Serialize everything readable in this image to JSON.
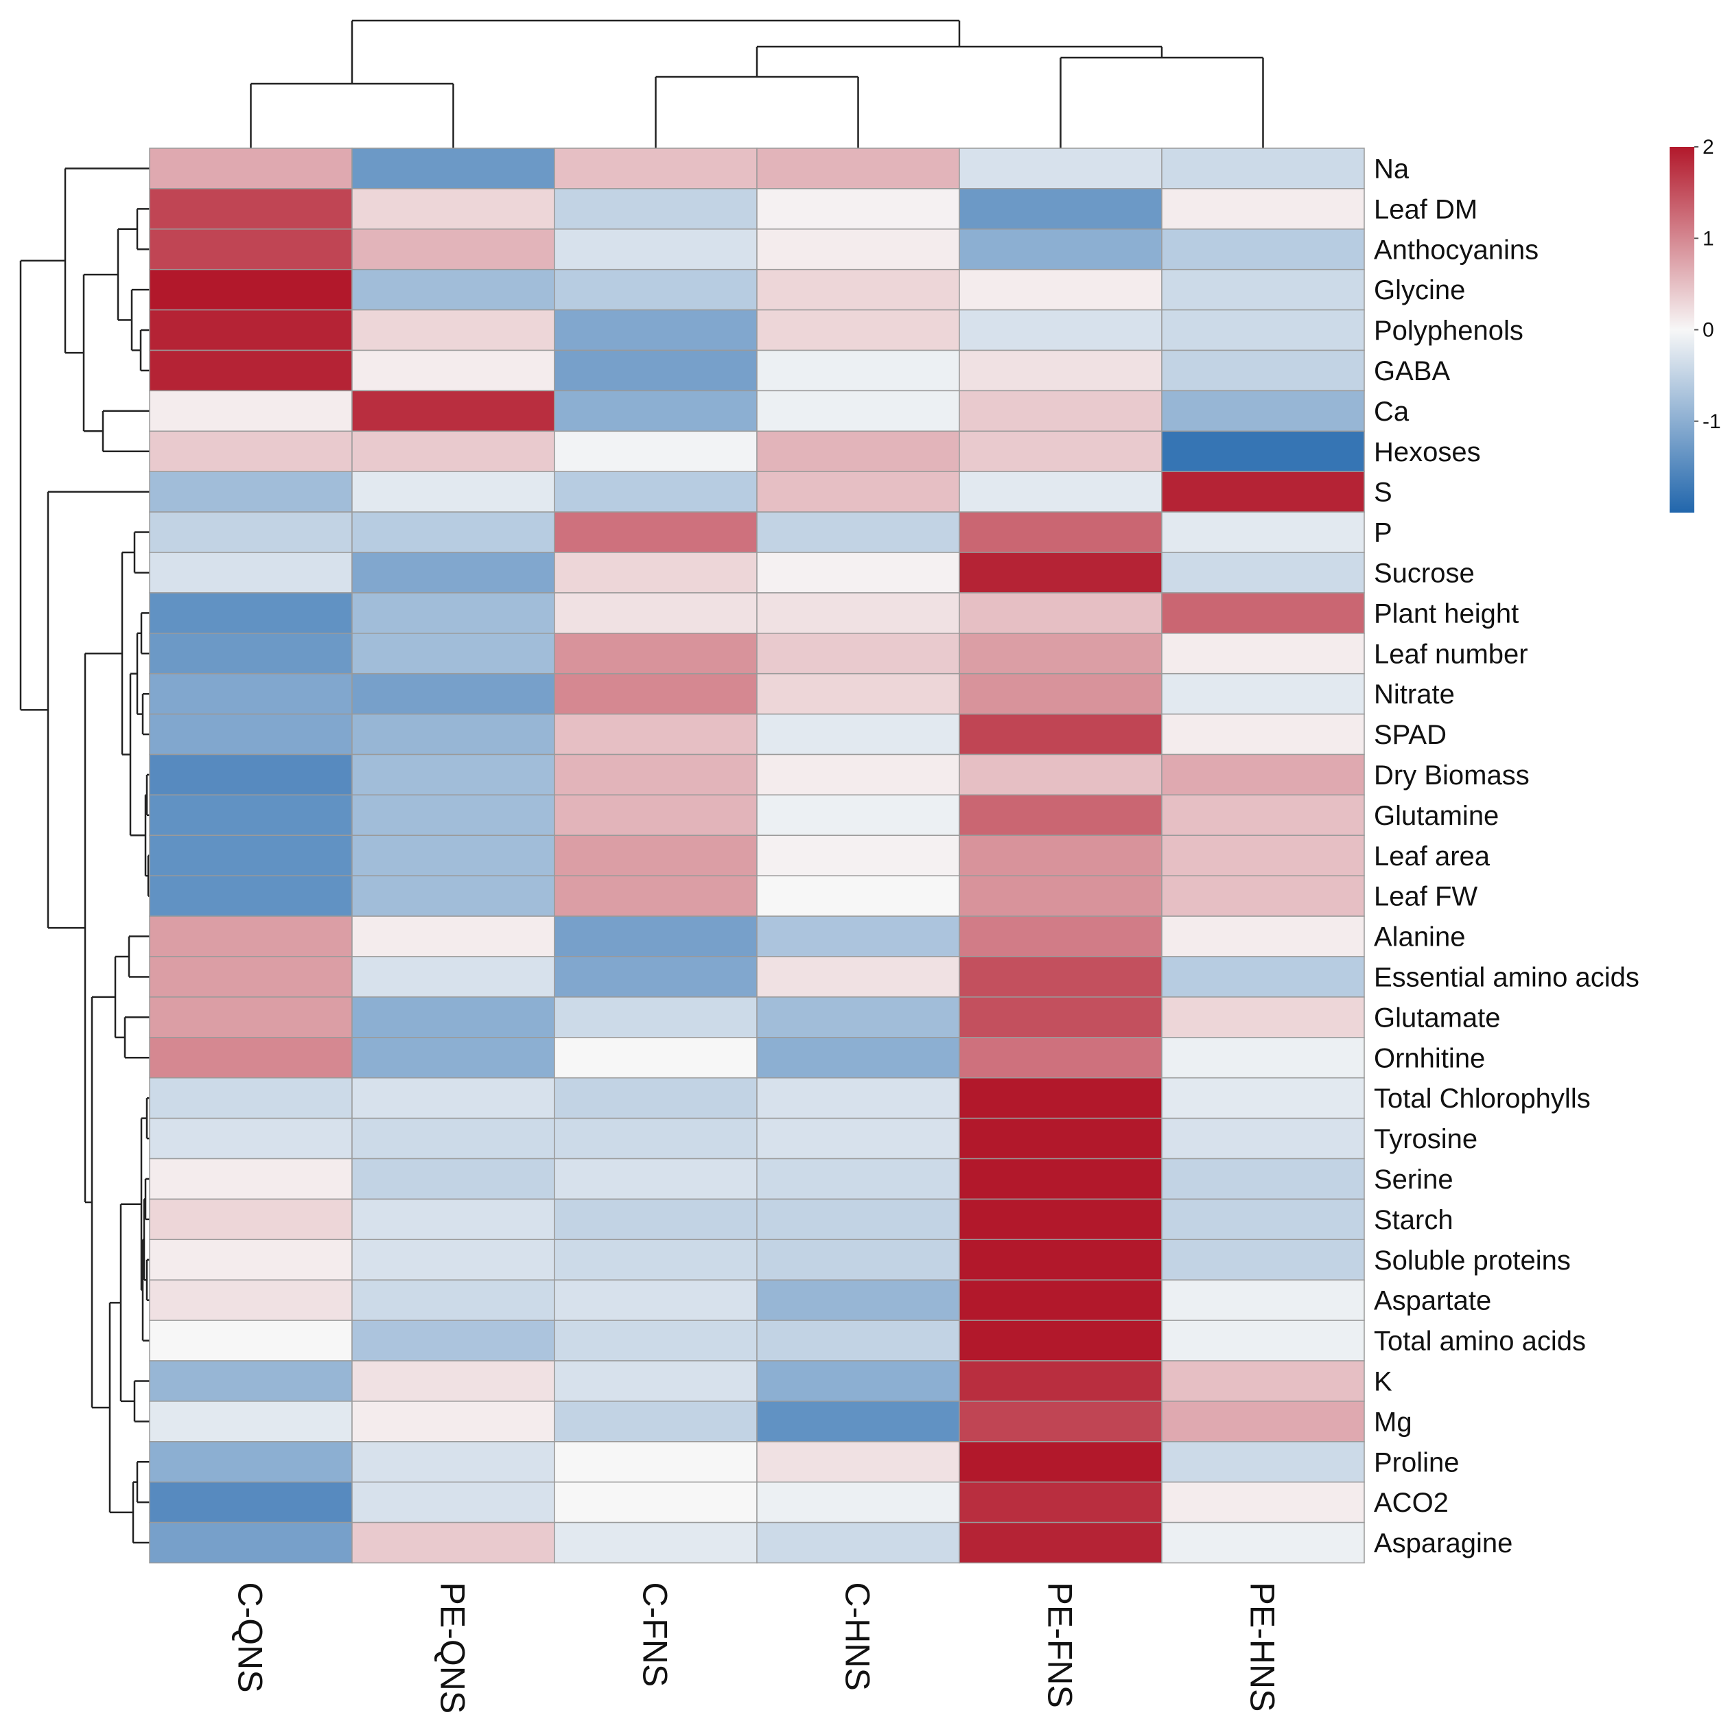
{
  "chart_data": {
    "type": "heatmap",
    "title": "",
    "columns": [
      "C-QNS",
      "PE-QNS",
      "C-FNS",
      "C-HNS",
      "PE-FNS",
      "PE-HNS"
    ],
    "rows": [
      "Na",
      "Leaf DM",
      "Anthocyanins",
      "Glycine",
      "Polyphenols",
      "GABA",
      "Ca",
      "Hexoses",
      "S",
      "P",
      "Sucrose",
      "Plant height",
      "Leaf number",
      "Nitrate",
      "SPAD",
      "Dry Biomass",
      "Glutamine",
      "Leaf area",
      "Leaf FW",
      "Alanine",
      "Essential amino acids",
      "Glutamate",
      "Ornhitine",
      "Total Chlorophylls",
      "Tyrosine",
      "Serine",
      "Starch",
      "Soluble proteins",
      "Aspartate",
      "Total amino acids",
      "K",
      "Mg",
      "Proline",
      "ACO2",
      "Asparagine"
    ],
    "values": [
      [
        0.7,
        -1.3,
        0.5,
        0.6,
        -0.3,
        -0.4
      ],
      [
        1.6,
        0.3,
        -0.5,
        0.05,
        -1.3,
        0.1
      ],
      [
        1.6,
        0.6,
        -0.3,
        0.1,
        -1.0,
        -0.6
      ],
      [
        2.0,
        -0.8,
        -0.6,
        0.3,
        0.1,
        -0.4
      ],
      [
        1.9,
        0.3,
        -1.1,
        0.3,
        -0.3,
        -0.4
      ],
      [
        1.9,
        0.1,
        -1.2,
        -0.1,
        0.2,
        -0.5
      ],
      [
        0.1,
        1.8,
        -1.0,
        -0.1,
        0.4,
        -0.9
      ],
      [
        0.4,
        0.4,
        -0.05,
        0.6,
        0.4,
        -1.8
      ],
      [
        -0.8,
        -0.2,
        -0.6,
        0.5,
        -0.2,
        1.9
      ],
      [
        -0.5,
        -0.6,
        1.2,
        -0.5,
        1.3,
        -0.2
      ],
      [
        -0.3,
        -1.1,
        0.3,
        0.05,
        1.9,
        -0.4
      ],
      [
        -1.4,
        -0.8,
        0.2,
        0.2,
        0.5,
        1.3
      ],
      [
        -1.3,
        -0.8,
        0.9,
        0.4,
        0.8,
        0.1
      ],
      [
        -1.1,
        -1.2,
        1.0,
        0.3,
        0.9,
        -0.2
      ],
      [
        -1.1,
        -0.9,
        0.5,
        -0.2,
        1.6,
        0.1
      ],
      [
        -1.5,
        -0.8,
        0.6,
        0.1,
        0.5,
        0.7
      ],
      [
        -1.4,
        -0.8,
        0.6,
        -0.1,
        1.3,
        0.5
      ],
      [
        -1.4,
        -0.8,
        0.8,
        0.05,
        0.9,
        0.5
      ],
      [
        -1.4,
        -0.8,
        0.8,
        0.0,
        0.9,
        0.5
      ],
      [
        0.8,
        0.1,
        -1.2,
        -0.7,
        1.1,
        0.1
      ],
      [
        0.8,
        -0.3,
        -1.1,
        0.2,
        1.5,
        -0.6
      ],
      [
        0.8,
        -1.0,
        -0.4,
        -0.8,
        1.5,
        0.3
      ],
      [
        1.0,
        -1.0,
        0.0,
        -1.0,
        1.2,
        -0.1
      ],
      [
        -0.4,
        -0.3,
        -0.5,
        -0.3,
        2.3,
        -0.2
      ],
      [
        -0.3,
        -0.4,
        -0.4,
        -0.3,
        2.3,
        -0.3
      ],
      [
        0.1,
        -0.5,
        -0.3,
        -0.4,
        2.2,
        -0.5
      ],
      [
        0.3,
        -0.3,
        -0.5,
        -0.5,
        2.2,
        -0.5
      ],
      [
        0.1,
        -0.3,
        -0.4,
        -0.5,
        2.2,
        -0.5
      ],
      [
        0.2,
        -0.4,
        -0.3,
        -0.9,
        2.2,
        -0.1
      ],
      [
        0.0,
        -0.7,
        -0.4,
        -0.5,
        2.2,
        -0.1
      ],
      [
        -0.9,
        0.2,
        -0.3,
        -1.0,
        1.8,
        0.5
      ],
      [
        -0.2,
        0.1,
        -0.5,
        -1.4,
        1.6,
        0.7
      ],
      [
        -1.0,
        -0.3,
        0.0,
        0.2,
        2.0,
        -0.4
      ],
      [
        -1.5,
        -0.3,
        0.0,
        -0.1,
        1.8,
        0.1
      ],
      [
        -1.2,
        0.4,
        -0.2,
        -0.4,
        1.9,
        -0.1
      ]
    ],
    "legend": {
      "ticks": [
        2,
        1,
        0,
        -1
      ],
      "tick_labels": [
        "2",
        "1",
        "0",
        "-1"
      ],
      "min": -2,
      "max": 2,
      "colors": {
        "low": "#2166ac",
        "mid": "#f7f7f7",
        "high": "#b2182b"
      },
      "placement": "top-right"
    },
    "row_dendrogram": true,
    "column_dendrogram": true,
    "xlabel": "",
    "ylabel": ""
  }
}
